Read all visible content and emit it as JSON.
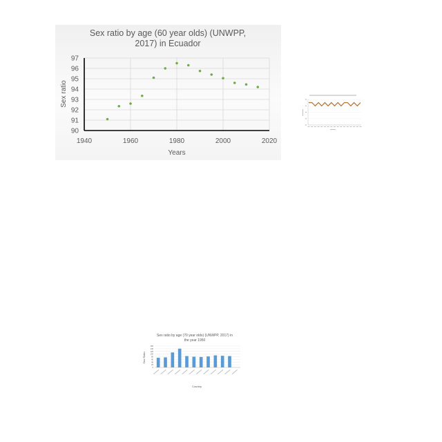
{
  "chart_data": [
    {
      "type": "scatter",
      "title": "Sex ratio by age (60 year olds) (UNWPP, 2017) in Ecuador",
      "title_lines": [
        "Sex ratio by age (60 year olds) (UNWPP,",
        "2017) in Ecuador"
      ],
      "xlabel": "Years",
      "ylabel": "Sex ratio",
      "xlim": [
        1940,
        2020
      ],
      "ylim": [
        90,
        97
      ],
      "xticks": [
        1940,
        1960,
        1980,
        2000,
        2020
      ],
      "yticks": [
        90,
        91,
        92,
        93,
        94,
        95,
        96,
        97
      ],
      "grid": true,
      "marker_color": "#70ad47",
      "x": [
        1950,
        1955,
        1960,
        1965,
        1970,
        1975,
        1980,
        1985,
        1990,
        1995,
        2000,
        2005,
        2010,
        2015
      ],
      "y": [
        91.1,
        92.35,
        92.6,
        93.35,
        95.1,
        96.0,
        96.5,
        96.3,
        95.75,
        95.4,
        95.05,
        94.6,
        94.45,
        94.2
      ]
    },
    {
      "type": "line",
      "title": "",
      "xlabel": "",
      "ylabel": "",
      "grid": true,
      "line_color": "#b5763a",
      "x": [
        1,
        2,
        3,
        4,
        5,
        6,
        7,
        8,
        9,
        10,
        11,
        12,
        13,
        14,
        15,
        16,
        17
      ],
      "y": [
        140,
        140,
        120,
        140,
        120,
        140,
        120,
        140,
        120,
        140,
        120,
        140,
        140,
        120,
        140,
        120,
        140
      ],
      "ylim": [
        0,
        160
      ]
    },
    {
      "type": "bar",
      "title": "Sex ratio by age (70 year olds) (UNWPP, 2017) in the year 1950",
      "title_lines": [
        "Sex ratio by age (70 year olds) (UNWPP, 2017) in",
        "the year 1950"
      ],
      "xlabel": "Country",
      "ylabel": "Sex Ratio",
      "ylim": [
        0,
        160
      ],
      "yticks": [
        0,
        20,
        40,
        60,
        80,
        100,
        120,
        140,
        160
      ],
      "grid": true,
      "bar_color": "#5b9bd5",
      "categories": [
        "",
        "",
        "",
        "",
        "",
        "",
        "",
        "",
        "",
        "",
        "",
        ""
      ],
      "values": [
        72,
        75,
        112,
        140,
        85,
        80,
        78,
        82,
        90,
        87,
        85,
        0
      ]
    }
  ]
}
